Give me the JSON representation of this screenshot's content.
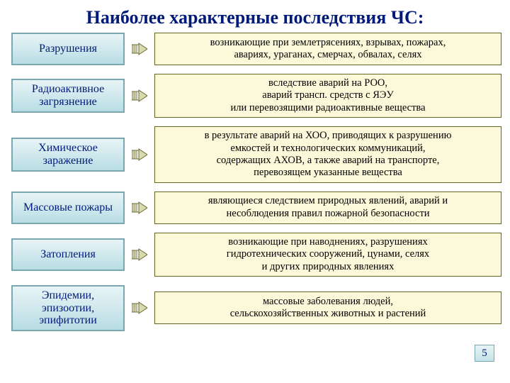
{
  "title": "Наиболее характерные последствия ЧС:",
  "title_color": "#001a7a",
  "left_box": {
    "border_color": "#7aa7b0",
    "text_color": "#001a7a",
    "bg_top": "#e8f4f6",
    "bg_bottom": "#b8dde4"
  },
  "right_box": {
    "border_color": "#64641c",
    "bg_color": "#fbf9d9",
    "text_color": "#000000"
  },
  "connector": {
    "stroke": "#6a6a36",
    "fill": "#d9d9b0"
  },
  "page_number": "5",
  "page_num_box": {
    "border_color": "#7aa7b0",
    "text_color": "#001a7a"
  },
  "items": [
    {
      "label": "Разрушения",
      "desc": "возникающие при землетрясениях, взрывах, пожарах,\nавариях, ураганах, смерчах, обвалах, селях"
    },
    {
      "label": "Радиоактивное загрязнение",
      "desc": "вследствие аварий на РОО,\nаварий трансп. средств с ЯЭУ\nили перевозящими радиоактивные вещества"
    },
    {
      "label": "Химическое заражение",
      "desc": "в результате аварий на ХОО, приводящих к разрушению\nемкостей и технологических коммуникаций,\nсодержащих АХОВ, а также аварий на транспорте,\nперевозящем указанные вещества"
    },
    {
      "label": "Массовые пожары",
      "desc": "являющиеся следствием природных явлений, аварий и\nнесоблюдения правил пожарной безопасности"
    },
    {
      "label": "Затопления",
      "desc": "возникающие при наводнениях, разрушениях\nгидротехнических сооружений, цунами, селях\nи других природных явлениях"
    },
    {
      "label": "Эпидемии, эпизоотии, эпифитотии",
      "desc": "массовые заболевания людей,\nсельскохозяйственных животных и растений"
    }
  ]
}
